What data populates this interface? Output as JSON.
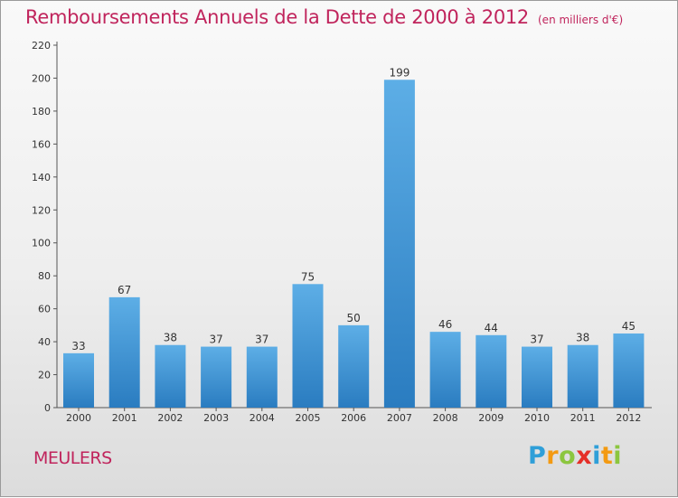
{
  "title": "Remboursements Annuels de la Dette de 2000 à 2012",
  "unit_note": "(en milliers d'€)",
  "place": "MEULERS",
  "logo": {
    "text": "Proxiti",
    "letters": [
      "P",
      "r",
      "o",
      "x",
      "i",
      "t",
      "i"
    ],
    "colors": [
      "#2f9fd8",
      "#f39a12",
      "#8cc63f",
      "#e52f28",
      "#2f9fd8",
      "#f39a12",
      "#8cc63f"
    ]
  },
  "colors": {
    "title": "#c0245c",
    "bar_light": "#5daee6",
    "bar_dark": "#2a7cc0",
    "axis": "#555555"
  },
  "chart_data": {
    "type": "bar",
    "categories": [
      "2000",
      "2001",
      "2002",
      "2003",
      "2004",
      "2005",
      "2006",
      "2007",
      "2008",
      "2009",
      "2010",
      "2011",
      "2012"
    ],
    "values": [
      33,
      67,
      38,
      37,
      37,
      75,
      50,
      199,
      46,
      44,
      37,
      38,
      45
    ],
    "ylim": [
      0,
      220
    ],
    "yticks": [
      0,
      20,
      40,
      60,
      80,
      100,
      120,
      140,
      160,
      180,
      200,
      220
    ],
    "grid": false,
    "title": "Remboursements Annuels de la Dette de 2000 à 2012",
    "xlabel": "",
    "ylabel": ""
  }
}
